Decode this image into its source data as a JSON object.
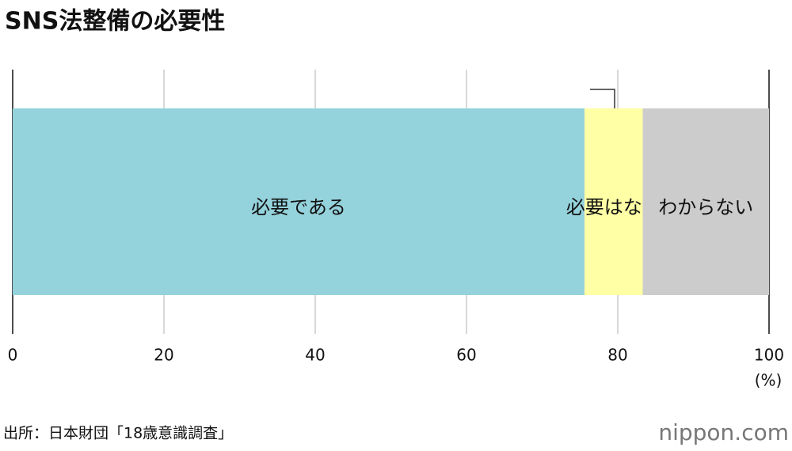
{
  "chart_data": {
    "type": "stacked_bar_horizontal",
    "title": "SNS法整備の必要性",
    "series": [
      {
        "name": "必要である",
        "color": "#94d2dc",
        "values": [
          75.6
        ]
      },
      {
        "name": "必要はない",
        "color": "#ffffa6",
        "values": [
          7.7
        ]
      },
      {
        "name": "わからない",
        "color": "#cccccc",
        "values": [
          16.7
        ]
      }
    ],
    "xlim": [
      0,
      100
    ],
    "xticks": [
      0,
      20,
      40,
      60,
      80,
      100
    ],
    "xunit": "(%)",
    "grid": true,
    "source": "出所：日本財団「18歳意識調査」",
    "logo": "nippon.com"
  }
}
